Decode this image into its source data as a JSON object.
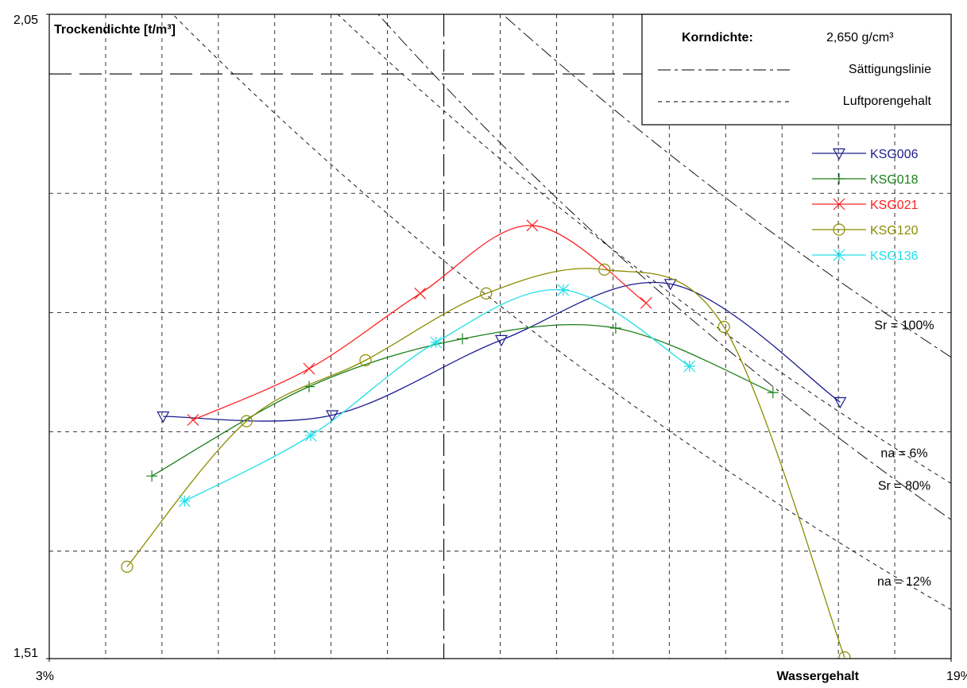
{
  "chart_data": {
    "type": "line",
    "y_label": "Trockendichte [t/m³]",
    "x_label": "Wassergehalt",
    "xlim": [
      3,
      19
    ],
    "ylim": [
      1.51,
      2.05
    ],
    "xticks": [
      {
        "value": 3,
        "label": "3%"
      },
      {
        "value": 19,
        "label": "19%"
      }
    ],
    "yticks": [
      {
        "value": 2.05,
        "label": "2,05"
      },
      {
        "value": 1.51,
        "label": "1,51"
      }
    ],
    "xgrid": [
      4,
      5,
      6,
      7,
      8,
      9,
      10,
      11,
      12,
      13,
      14,
      15,
      16,
      17,
      18
    ],
    "ygrid": [
      2.0,
      1.9,
      1.8,
      1.7,
      1.6
    ],
    "major_grid": {
      "x": 10,
      "y": 2.0
    },
    "grain_density": {
      "label": "Korndichte:",
      "value": 2.65,
      "value_label": "2,650 g/cm³"
    },
    "line_legend": {
      "saturation": "Sättigungslinie",
      "air_voids": "Luftporengehalt"
    },
    "reference_lines": [
      {
        "label": "Sr = 100%",
        "kind": "saturation",
        "value": 100
      },
      {
        "label": "na = 6%",
        "kind": "air_voids",
        "value": 6
      },
      {
        "label": "Sr = 80%",
        "kind": "saturation",
        "value": 80
      },
      {
        "label": "na = 12%",
        "kind": "air_voids",
        "value": 12
      }
    ],
    "series": [
      {
        "name": "KSG006",
        "color": "#1c1c8e",
        "marker": "triangle",
        "x": [
          5.02,
          8.02,
          11.02,
          14.02,
          17.03
        ],
        "values": [
          1.713,
          1.714,
          1.777,
          1.824,
          1.725
        ]
      },
      {
        "name": "KSG018",
        "color": "#1a7f1a",
        "marker": "tick",
        "x": [
          4.82,
          7.61,
          10.33,
          13.05,
          15.84
        ],
        "values": [
          1.663,
          1.738,
          1.778,
          1.787,
          1.733
        ]
      },
      {
        "name": "KSG021",
        "color": "#ff2020",
        "marker": "cross",
        "x": [
          5.55,
          7.61,
          9.58,
          11.57,
          13.59
        ],
        "values": [
          1.71,
          1.753,
          1.816,
          1.873,
          1.808
        ]
      },
      {
        "name": "KSG120",
        "color": "#8c8c00",
        "marker": "circle",
        "x": [
          4.38,
          6.5,
          8.61,
          10.75,
          12.85,
          14.97,
          17.11
        ],
        "values": [
          1.587,
          1.709,
          1.76,
          1.816,
          1.836,
          1.788,
          1.511
        ]
      },
      {
        "name": "KSG136",
        "color": "#20e0e8",
        "marker": "star",
        "x": [
          5.4,
          7.64,
          9.86,
          12.12,
          14.36
        ],
        "values": [
          1.642,
          1.697,
          1.775,
          1.819,
          1.755
        ]
      }
    ]
  }
}
